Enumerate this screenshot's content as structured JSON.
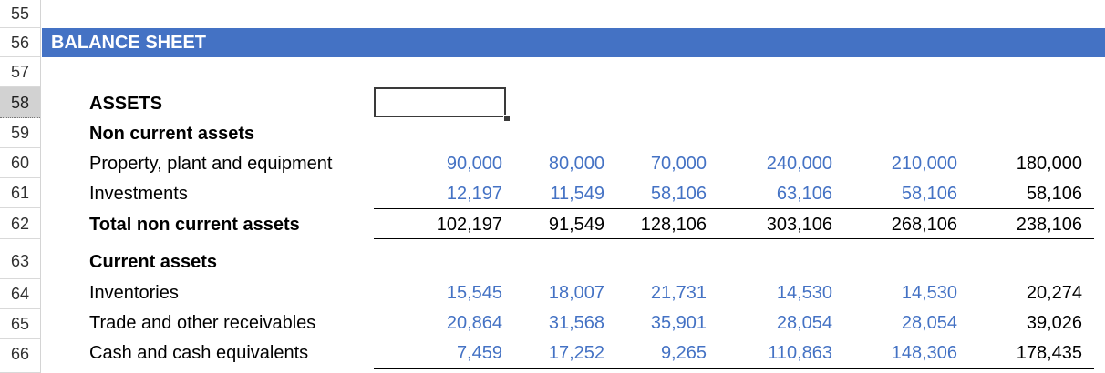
{
  "sheet": {
    "row_numbers": [
      "55",
      "56",
      "57",
      "58",
      "59",
      "60",
      "61",
      "62",
      "63",
      "64",
      "65",
      "66"
    ],
    "header_title": "BALANCE SHEET",
    "rows": [
      {
        "label": "ASSETS",
        "bold": true,
        "values": []
      },
      {
        "label": "Non current assets",
        "bold": true,
        "values": []
      },
      {
        "label": "Property, plant and equipment",
        "bold": false,
        "values": [
          "90,000",
          "80,000",
          "70,000",
          "240,000",
          "210,000",
          "180,000"
        ]
      },
      {
        "label": "Investments",
        "bold": false,
        "values": [
          "12,197",
          "11,549",
          "58,106",
          "63,106",
          "58,106",
          "58,106"
        ]
      },
      {
        "label": "Total non current assets",
        "bold": true,
        "values": [
          "102,197",
          "91,549",
          "128,106",
          "303,106",
          "268,106",
          "238,106"
        ]
      },
      {
        "label": "Current assets",
        "bold": true,
        "values": []
      },
      {
        "label": "Inventories",
        "bold": false,
        "values": [
          "15,545",
          "18,007",
          "21,731",
          "14,530",
          "14,530",
          "20,274"
        ]
      },
      {
        "label": "Trade and other receivables",
        "bold": false,
        "values": [
          "20,864",
          "31,568",
          "35,901",
          "28,054",
          "28,054",
          "39,026"
        ]
      },
      {
        "label": "Cash and cash equivalents",
        "bold": false,
        "values": [
          "7,459",
          "17,252",
          "9,265",
          "110,863",
          "148,306",
          "178,435"
        ]
      }
    ]
  },
  "colors": {
    "header_band": "#4472c4",
    "input_value": "#4472c4",
    "formula_value": "#000000"
  }
}
